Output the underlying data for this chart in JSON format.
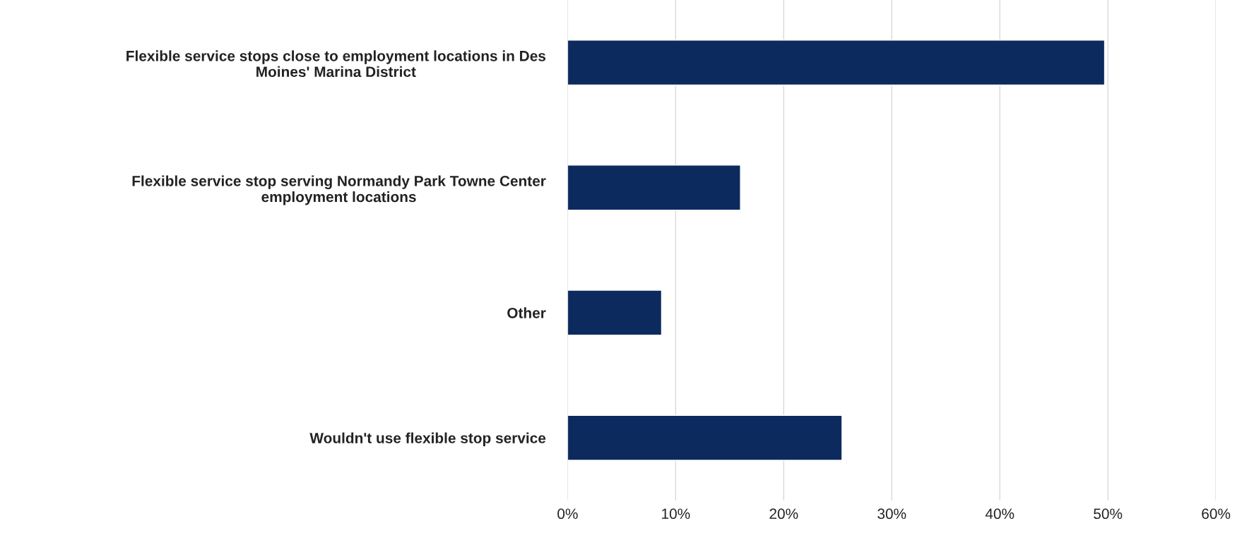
{
  "chart_data": {
    "type": "bar",
    "orientation": "horizontal",
    "categories": [
      "Flexible service stops close to employment locations in Des\nMoines' Marina District",
      "Flexible service stop serving Normandy Park Towne Center\nemployment locations",
      "Other",
      "Wouldn't use flexible stop service"
    ],
    "values": [
      49.7,
      16.0,
      8.7,
      25.4
    ],
    "color": "#0d2a5e",
    "xlim": [
      0,
      60
    ],
    "xticks": [
      {
        "value": 0,
        "label": "0%"
      },
      {
        "value": 10,
        "label": "10%"
      },
      {
        "value": 20,
        "label": "20%"
      },
      {
        "value": 30,
        "label": "30%"
      },
      {
        "value": 40,
        "label": "40%"
      },
      {
        "value": 50,
        "label": "50%"
      },
      {
        "value": 60,
        "label": "60%"
      }
    ],
    "grid": "x",
    "legend": false
  }
}
